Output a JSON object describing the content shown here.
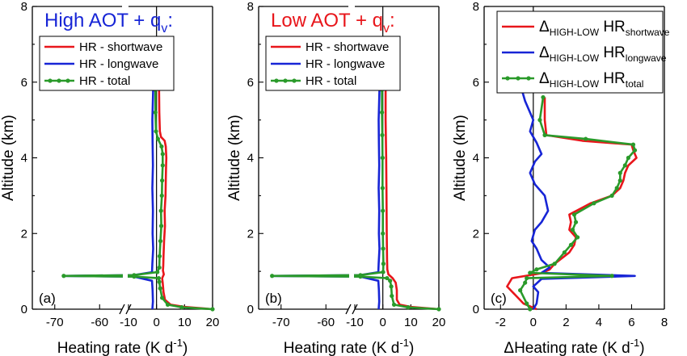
{
  "colors": {
    "shortwave": "#e8161b",
    "longwave": "#1725d6",
    "total": "#2a9a2a",
    "title_high": "#1725d6",
    "title_low": "#e8161b"
  },
  "chart_data": [
    {
      "type": "line",
      "panel_label": "(a)",
      "title_main": "High  AOT + q",
      "title_sub": "v",
      "title_end": ":",
      "xlabel": "Heating rate (K d",
      "xlabel_sup": "-1",
      "xlabel_end": ")",
      "ylabel": "Altitude (km)",
      "ylim": [
        0,
        8
      ],
      "yticks": [
        "0",
        "2",
        "4",
        "6",
        "8"
      ],
      "xticks": [
        "-70",
        "-60",
        "-10",
        "0",
        "10",
        "20"
      ],
      "broken_x_axis": true,
      "legend": [
        "HR - shortwave",
        "HR - longwave",
        "HR - total"
      ],
      "series": [
        {
          "name": "HR - shortwave",
          "color_key": "shortwave",
          "points": [
            [
              20,
              0
            ],
            [
              10,
              0.06
            ],
            [
              5,
              0.12
            ],
            [
              3,
              0.25
            ],
            [
              2.5,
              0.45
            ],
            [
              2.2,
              0.7
            ],
            [
              2.0,
              0.82
            ],
            [
              2.6,
              0.92
            ],
            [
              2.3,
              1.02
            ],
            [
              2.4,
              1.15
            ],
            [
              2.5,
              1.4
            ],
            [
              2.7,
              1.8
            ],
            [
              3.0,
              2.2
            ],
            [
              2.9,
              2.6
            ],
            [
              3.2,
              3.0
            ],
            [
              3.3,
              3.4
            ],
            [
              3.4,
              3.8
            ],
            [
              3.5,
              4.0
            ],
            [
              3.3,
              4.3
            ],
            [
              2.9,
              4.45
            ],
            [
              1.6,
              4.55
            ],
            [
              1.2,
              4.7
            ],
            [
              1.0,
              5.2
            ],
            [
              0.9,
              5.8
            ]
          ]
        },
        {
          "name": "HR - longwave",
          "color_key": "longwave",
          "points": [
            [
              -1.5,
              0
            ],
            [
              -1.3,
              0.2
            ],
            [
              -1.4,
              0.5
            ],
            [
              -1.6,
              0.75
            ],
            [
              -8,
              0.86
            ],
            [
              -68,
              0.88
            ],
            [
              -8,
              0.9
            ],
            [
              -1.6,
              0.98
            ],
            [
              -1.5,
              1.2
            ],
            [
              -1.2,
              1.6
            ],
            [
              -1.4,
              2.0
            ],
            [
              -1.3,
              2.6
            ],
            [
              -1.5,
              3.2
            ],
            [
              -1.3,
              3.8
            ],
            [
              -1.4,
              4.4
            ],
            [
              -1.5,
              5.0
            ],
            [
              -1.2,
              5.8
            ]
          ]
        },
        {
          "name": "HR - total",
          "color_key": "total",
          "markers": true,
          "points": [
            [
              20,
              0
            ],
            [
              9,
              0.05
            ],
            [
              4,
              0.12
            ],
            [
              2,
              0.3
            ],
            [
              1.3,
              0.55
            ],
            [
              1.0,
              0.72
            ],
            [
              0.8,
              0.82
            ],
            [
              -8,
              0.86
            ],
            [
              -68,
              0.88
            ],
            [
              -8,
              0.9
            ],
            [
              0.3,
              0.98
            ],
            [
              1.0,
              1.1
            ],
            [
              1.1,
              1.4
            ],
            [
              1.4,
              1.8
            ],
            [
              1.7,
              2.2
            ],
            [
              1.6,
              2.6
            ],
            [
              1.9,
              3.0
            ],
            [
              2.0,
              3.4
            ],
            [
              2.2,
              3.8
            ],
            [
              2.2,
              4.1
            ],
            [
              1.8,
              4.3
            ],
            [
              0.5,
              4.5
            ],
            [
              -0.2,
              4.7
            ],
            [
              -0.4,
              5.2
            ],
            [
              -0.4,
              5.8
            ]
          ]
        }
      ]
    },
    {
      "type": "line",
      "panel_label": "(b)",
      "title_main": "Low  AOT + q",
      "title_sub": "v",
      "title_end": ":",
      "xlabel": "Heating rate (K d",
      "xlabel_sup": "-1",
      "xlabel_end": ")",
      "ylabel": "Altitude (km)",
      "ylim": [
        0,
        8
      ],
      "yticks": [
        "0",
        "2",
        "4",
        "6",
        "8"
      ],
      "xticks": [
        "-70",
        "-60",
        "-10",
        "0",
        "10",
        "20"
      ],
      "broken_x_axis": true,
      "legend": [
        "HR - shortwave",
        "HR - longwave",
        "HR - total"
      ],
      "series": [
        {
          "name": "HR - shortwave",
          "color_key": "shortwave",
          "points": [
            [
              20,
              0
            ],
            [
              10,
              0.06
            ],
            [
              6,
              0.12
            ],
            [
              5,
              0.25
            ],
            [
              5.0,
              0.5
            ],
            [
              4.6,
              0.7
            ],
            [
              3.5,
              0.82
            ],
            [
              2.0,
              0.92
            ],
            [
              1.6,
              1.05
            ],
            [
              1.5,
              1.3
            ],
            [
              1.4,
              2.0
            ],
            [
              1.3,
              3.0
            ],
            [
              1.2,
              4.0
            ],
            [
              1.0,
              5.0
            ],
            [
              1.0,
              5.8
            ]
          ]
        },
        {
          "name": "HR - longwave",
          "color_key": "longwave",
          "points": [
            [
              -1.5,
              0
            ],
            [
              -1.3,
              0.2
            ],
            [
              -1.4,
              0.5
            ],
            [
              -1.6,
              0.75
            ],
            [
              -8,
              0.86
            ],
            [
              -72,
              0.88
            ],
            [
              -8,
              0.9
            ],
            [
              -1.6,
              0.98
            ],
            [
              -1.5,
              1.2
            ],
            [
              -1.2,
              1.6
            ],
            [
              -1.4,
              2.0
            ],
            [
              -1.3,
              2.6
            ],
            [
              -1.5,
              3.2
            ],
            [
              -1.3,
              3.8
            ],
            [
              -1.4,
              4.4
            ],
            [
              -1.5,
              5.0
            ],
            [
              -1.2,
              5.8
            ]
          ]
        },
        {
          "name": "HR - total",
          "color_key": "total",
          "markers": true,
          "points": [
            [
              20,
              0
            ],
            [
              9,
              0.05
            ],
            [
              4,
              0.12
            ],
            [
              3.2,
              0.35
            ],
            [
              3.0,
              0.6
            ],
            [
              2.6,
              0.75
            ],
            [
              1.5,
              0.82
            ],
            [
              -8,
              0.86
            ],
            [
              -72,
              0.88
            ],
            [
              -8,
              0.9
            ],
            [
              0.1,
              0.98
            ],
            [
              0.2,
              1.2
            ],
            [
              0.1,
              1.6
            ],
            [
              0.0,
              2.0
            ],
            [
              0.0,
              2.6
            ],
            [
              -0.1,
              3.2
            ],
            [
              -0.1,
              4.0
            ],
            [
              -0.2,
              4.6
            ],
            [
              -0.3,
              5.2
            ],
            [
              -0.3,
              5.8
            ]
          ]
        }
      ]
    },
    {
      "type": "line",
      "panel_label": "(c)",
      "xlabel": "Heating rate (K d",
      "xlabel_prefix": "Δ",
      "xlabel_sup": "-1",
      "xlabel_end": ")",
      "ylabel": "Altitude (km)",
      "xlim": [
        -3,
        8
      ],
      "ylim": [
        0,
        8
      ],
      "yticks": [
        "0",
        "2",
        "4",
        "6",
        "8"
      ],
      "xticks": [
        "-2",
        "0",
        "2",
        "4",
        "6",
        "8"
      ],
      "legend": [
        {
          "main": "Δ",
          "sub": "HIGH-LOW",
          "mid": " HR",
          "sub2": "shortwave"
        },
        {
          "main": "Δ",
          "sub": "HIGH-LOW",
          "mid": " HR",
          "sub2": "longwave"
        },
        {
          "main": "Δ",
          "sub": "HIGH-LOW",
          "mid": " HR",
          "sub2": "total"
        }
      ],
      "series": [
        {
          "name": "Δ HR shortwave",
          "color_key": "shortwave",
          "points": [
            [
              0.2,
              0
            ],
            [
              -0.6,
              0.15
            ],
            [
              -1.6,
              0.6
            ],
            [
              -1.3,
              0.82
            ],
            [
              0.5,
              0.95
            ],
            [
              1.0,
              1.05
            ],
            [
              1.3,
              1.2
            ],
            [
              2.2,
              1.5
            ],
            [
              2.5,
              1.7
            ],
            [
              2.6,
              1.9
            ],
            [
              2.2,
              2.1
            ],
            [
              2.3,
              2.3
            ],
            [
              2.2,
              2.5
            ],
            [
              3.5,
              2.8
            ],
            [
              4.8,
              3.0
            ],
            [
              5.3,
              3.2
            ],
            [
              5.5,
              3.4
            ],
            [
              5.6,
              3.6
            ],
            [
              5.8,
              3.8
            ],
            [
              6.3,
              4.0
            ],
            [
              6.1,
              4.2
            ],
            [
              6.0,
              4.35
            ],
            [
              3.0,
              4.45
            ],
            [
              0.8,
              4.6
            ],
            [
              0.7,
              5.0
            ],
            [
              0.7,
              5.6
            ]
          ]
        },
        {
          "name": "Δ HR longwave",
          "color_key": "longwave",
          "points": [
            [
              0.0,
              0
            ],
            [
              0.2,
              0.15
            ],
            [
              0.3,
              0.45
            ],
            [
              0.0,
              0.6
            ],
            [
              0.5,
              0.8
            ],
            [
              6.2,
              0.88
            ],
            [
              0.5,
              0.96
            ],
            [
              1.0,
              1.1
            ],
            [
              0.5,
              1.3
            ],
            [
              0.2,
              1.6
            ],
            [
              -0.1,
              1.8
            ],
            [
              0.1,
              2.1
            ],
            [
              0.5,
              2.3
            ],
            [
              0.9,
              2.6
            ],
            [
              0.7,
              3.0
            ],
            [
              0.1,
              3.3
            ],
            [
              -0.2,
              3.6
            ],
            [
              0.1,
              3.9
            ],
            [
              0.5,
              4.1
            ],
            [
              0.2,
              4.4
            ],
            [
              -0.2,
              4.7
            ],
            [
              0.0,
              5.0
            ],
            [
              -0.5,
              5.5
            ],
            [
              -0.7,
              5.8
            ]
          ]
        },
        {
          "name": "Δ HR total",
          "color_key": "total",
          "markers": true,
          "points": [
            [
              -0.2,
              0
            ],
            [
              -0.4,
              0.15
            ],
            [
              -0.8,
              0.5
            ],
            [
              -0.5,
              0.7
            ],
            [
              -0.4,
              0.82
            ],
            [
              4.8,
              0.88
            ],
            [
              -0.2,
              0.96
            ],
            [
              0.2,
              1.05
            ],
            [
              1.3,
              1.2
            ],
            [
              1.9,
              1.5
            ],
            [
              2.3,
              1.7
            ],
            [
              2.7,
              1.9
            ],
            [
              2.4,
              2.1
            ],
            [
              2.6,
              2.3
            ],
            [
              2.5,
              2.5
            ],
            [
              3.7,
              2.8
            ],
            [
              4.8,
              3.0
            ],
            [
              5.1,
              3.2
            ],
            [
              5.3,
              3.4
            ],
            [
              5.3,
              3.6
            ],
            [
              5.6,
              3.8
            ],
            [
              5.8,
              4.0
            ],
            [
              6.2,
              4.2
            ],
            [
              6.1,
              4.35
            ],
            [
              3.2,
              4.5
            ],
            [
              0.7,
              4.6
            ],
            [
              0.4,
              5.0
            ],
            [
              0.6,
              5.6
            ]
          ]
        }
      ]
    }
  ]
}
